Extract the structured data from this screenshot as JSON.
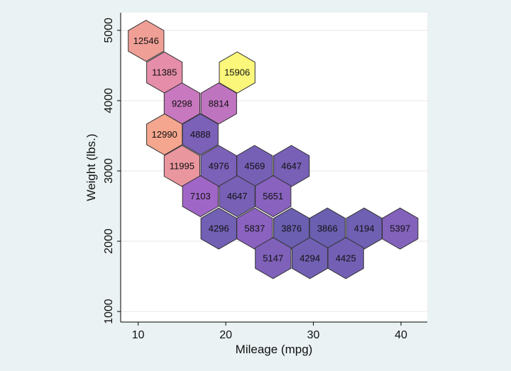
{
  "chart_data": {
    "type": "hexbin",
    "xlabel": "Mileage (mpg)",
    "ylabel": "Weight (lbs.)",
    "xlim": [
      8,
      43
    ],
    "ylim": [
      850,
      5250
    ],
    "xticks": [
      "10",
      "20",
      "30",
      "40"
    ],
    "yticks": [
      "1000",
      "2000",
      "3000",
      "4000",
      "5000"
    ],
    "grid": true,
    "colors": {
      "background": "#eaf2f3",
      "plot_bg": "#ffffff",
      "low": "#6a5fb0",
      "mid": "#c878c0",
      "high": "#f5a98a",
      "max": "#fbf77a"
    },
    "cells": [
      {
        "x": 10.9,
        "y": 4850,
        "value": 12546
      },
      {
        "x": 13.0,
        "y": 4400,
        "value": 11385
      },
      {
        "x": 21.3,
        "y": 4400,
        "value": 15906
      },
      {
        "x": 15.0,
        "y": 3960,
        "value": 9298
      },
      {
        "x": 19.2,
        "y": 3960,
        "value": 8814
      },
      {
        "x": 13.0,
        "y": 3520,
        "value": 12990
      },
      {
        "x": 17.1,
        "y": 3520,
        "value": 4888
      },
      {
        "x": 15.0,
        "y": 3070,
        "value": 11995
      },
      {
        "x": 19.2,
        "y": 3070,
        "value": 4976
      },
      {
        "x": 23.3,
        "y": 3070,
        "value": 4569
      },
      {
        "x": 27.5,
        "y": 3070,
        "value": 4647
      },
      {
        "x": 17.1,
        "y": 2640,
        "value": 7103
      },
      {
        "x": 21.3,
        "y": 2640,
        "value": 4647
      },
      {
        "x": 25.4,
        "y": 2640,
        "value": 5651
      },
      {
        "x": 19.2,
        "y": 2180,
        "value": 4296
      },
      {
        "x": 23.3,
        "y": 2180,
        "value": 5837
      },
      {
        "x": 27.5,
        "y": 2180,
        "value": 3876
      },
      {
        "x": 31.6,
        "y": 2180,
        "value": 3866
      },
      {
        "x": 35.8,
        "y": 2180,
        "value": 4194
      },
      {
        "x": 39.9,
        "y": 2180,
        "value": 5397
      },
      {
        "x": 25.4,
        "y": 1760,
        "value": 5147
      },
      {
        "x": 29.6,
        "y": 1760,
        "value": 4294
      },
      {
        "x": 33.7,
        "y": 1760,
        "value": 4425
      }
    ]
  }
}
